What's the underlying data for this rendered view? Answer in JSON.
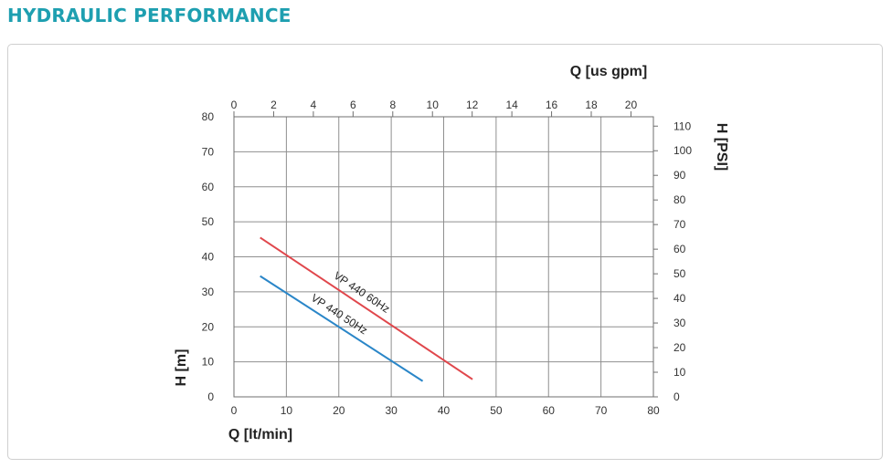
{
  "page": {
    "title": "HYDRAULIC PERFORMANCE",
    "title_color": "#1e9fb0"
  },
  "chart_data": {
    "type": "line",
    "x": {
      "label": "Q [lt/min]",
      "range": [
        0,
        80
      ],
      "ticks": [
        0,
        10,
        20,
        30,
        40,
        50,
        60,
        70,
        80
      ]
    },
    "x2": {
      "label": "Q [us gpm]",
      "range": [
        0,
        21.13
      ],
      "ticks": [
        0,
        2,
        4,
        6,
        8,
        10,
        12,
        14,
        16,
        18,
        20
      ]
    },
    "y": {
      "label": "H [m]",
      "range": [
        0,
        80
      ],
      "ticks": [
        0,
        10,
        20,
        30,
        40,
        50,
        60,
        70,
        80
      ]
    },
    "y2": {
      "label": "H [PSI]",
      "range": [
        0,
        113.8
      ],
      "ticks": [
        0,
        10,
        20,
        30,
        40,
        50,
        60,
        70,
        80,
        90,
        100,
        110
      ]
    },
    "grid": true,
    "series": [
      {
        "name": "VP 440 60Hz",
        "color": "#e0474c",
        "x": [
          5,
          45.5
        ],
        "y": [
          45.5,
          5
        ]
      },
      {
        "name": "VP 440 50Hz",
        "color": "#2a86c8",
        "x": [
          5,
          36
        ],
        "y": [
          34.5,
          4.5
        ]
      }
    ]
  }
}
